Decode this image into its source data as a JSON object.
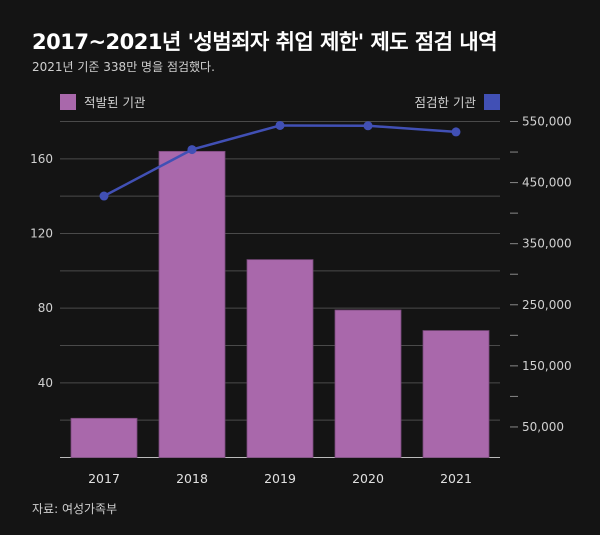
{
  "title": "2017~2021년 '성범죄자 취업 제한' 제도 점검 내역",
  "subtitle": "2021년 기준 338만 명을 점검했다.",
  "source": "자료: 여성가족부",
  "chart_data": {
    "type": "bar+line",
    "categories": [
      "2017",
      "2018",
      "2019",
      "2020",
      "2021"
    ],
    "series": [
      {
        "name": "적발된 기관",
        "type": "bar",
        "axis": "left",
        "color": "#a968ab",
        "values": [
          21,
          164,
          106,
          79,
          68
        ]
      },
      {
        "name": "점검한 기관",
        "type": "line",
        "axis": "right",
        "color": "#4150b5",
        "values": [
          428000,
          504000,
          543500,
          543000,
          533000
        ]
      }
    ],
    "left_axis": {
      "ylim": [
        0,
        180
      ],
      "ticks": [
        40,
        80,
        120,
        160
      ],
      "tick_labels": [
        "40",
        "80",
        "120",
        "160"
      ]
    },
    "right_axis": {
      "ylim": [
        0,
        550000
      ],
      "ticks": [
        50000,
        150000,
        250000,
        350000,
        450000,
        550000
      ],
      "tick_labels": [
        "50,000",
        "150,000",
        "250,000",
        "350,000",
        "450,000",
        "550,000"
      ]
    },
    "grid": true,
    "legend": "top"
  }
}
